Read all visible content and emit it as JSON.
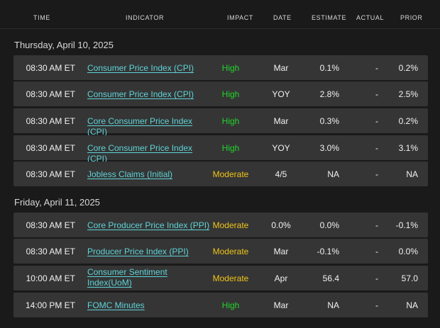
{
  "header": {
    "time": "TIME",
    "indicator": "INDICATOR",
    "impact": "IMPACT",
    "date": "DATE",
    "estimate": "ESTIMATE",
    "actual": "ACTUAL",
    "prior": "PRIOR"
  },
  "sections": [
    {
      "title": "Thursday, April 10, 2025",
      "rows": [
        {
          "time": "08:30 AM ET",
          "indicator": "Consumer Price Index (CPI)",
          "impact": "High",
          "date": "Mar",
          "estimate": "0.1%",
          "actual": "-",
          "prior": "0.2%"
        },
        {
          "time": "08:30 AM ET",
          "indicator": "Consumer Price Index (CPI)",
          "impact": "High",
          "date": "YOY",
          "estimate": "2.8%",
          "actual": "-",
          "prior": "2.5%"
        },
        {
          "time": "08:30 AM ET",
          "indicator": "Core Consumer Price Index (CPI)",
          "impact": "High",
          "date": "Mar",
          "estimate": "0.3%",
          "actual": "-",
          "prior": "0.2%"
        },
        {
          "time": "08:30 AM ET",
          "indicator": "Core Consumer Price Index (CPI)",
          "impact": "High",
          "date": "YOY",
          "estimate": "3.0%",
          "actual": "-",
          "prior": "3.1%"
        },
        {
          "time": "08:30 AM ET",
          "indicator": "Jobless Claims (Initial)",
          "impact": "Moderate",
          "date": "4/5",
          "estimate": "NA",
          "actual": "-",
          "prior": "NA"
        }
      ]
    },
    {
      "title": "Friday, April 11, 2025",
      "rows": [
        {
          "time": "08:30 AM ET",
          "indicator": "Core Producer Price Index (PPI)",
          "impact": "Moderate",
          "date": "0.0%",
          "estimate": "0.0%",
          "actual": "-",
          "prior": "-0.1%"
        },
        {
          "time": "08:30 AM ET",
          "indicator": "Producer Price Index (PPI)",
          "impact": "Moderate",
          "date": "Mar",
          "estimate": "-0.1%",
          "actual": "-",
          "prior": "0.0%"
        },
        {
          "time": "10:00 AM ET",
          "indicator": "Consumer Sentiment Index(UoM)",
          "impact": "Moderate",
          "date": "Apr",
          "estimate": "56.4",
          "actual": "-",
          "prior": "57.0"
        },
        {
          "time": "14:00 PM ET",
          "indicator": "FOMC Minutes",
          "impact": "High",
          "date": "Mar",
          "estimate": "NA",
          "actual": "-",
          "prior": "NA"
        }
      ]
    }
  ],
  "colors": {
    "background": "#1a1a1a",
    "row": "#353535",
    "link": "#5fd3d8",
    "high": "#22d42b",
    "moderate": "#f0c419"
  }
}
